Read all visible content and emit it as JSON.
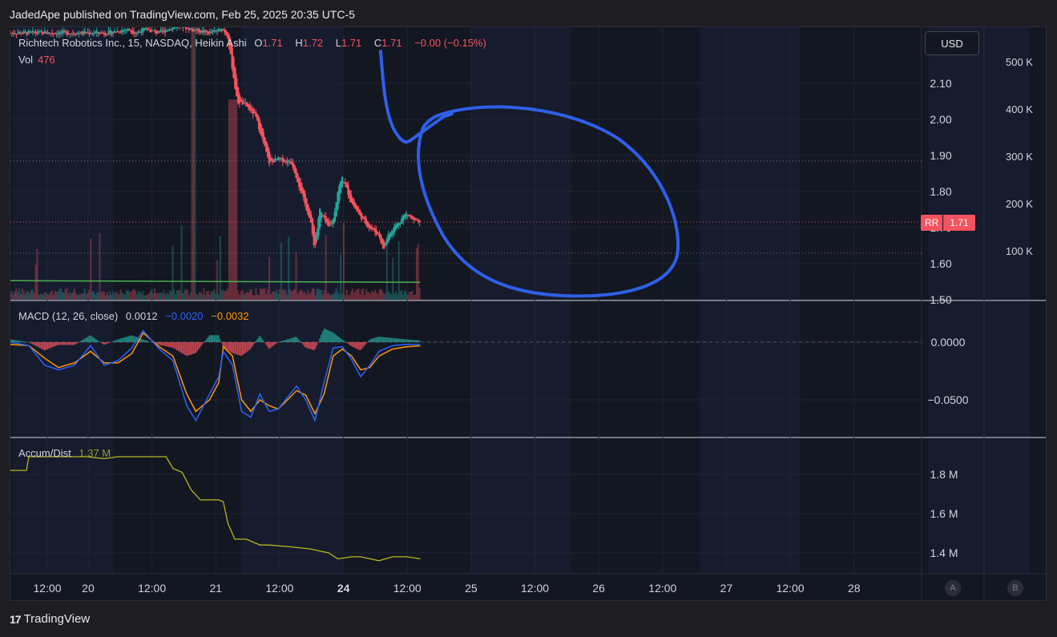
{
  "header": {
    "published_line": "JadedApe published on TradingView.com, Feb 25, 2025 20:35 UTC-5"
  },
  "main_legend": {
    "title": "Richtech Robotics Inc., 15, NASDAQ, Heikin Ashi",
    "o_label": "O",
    "o_value": "1.71",
    "h_label": "H",
    "h_value": "1.72",
    "l_label": "L",
    "l_value": "1.71",
    "c_label": "C",
    "c_value": "1.71",
    "change": "−0.00 (−0.15%)",
    "vol_label": "Vol",
    "vol_value": "476"
  },
  "currency_button": "USD",
  "last_price_tag": {
    "symbol": "RR",
    "price": "1.71"
  },
  "macd_legend": {
    "title": "MACD (12, 26, close)",
    "hist": "0.0012",
    "macd": "−0.0020",
    "signal": "−0.0032"
  },
  "ad_legend": {
    "title": "Accum/Dist",
    "value": "1.37 M"
  },
  "scale_buttons": {
    "a": "A",
    "b": "B"
  },
  "footer": {
    "brand": "TradingView",
    "logo_glyph": "17"
  },
  "colors": {
    "up": "#26a69a",
    "down": "#f7525f",
    "macd": "#2962ff",
    "signal": "#ff9800",
    "ad": "#b5b520",
    "annotation": "#2f5fe8",
    "support": "#4caf50"
  },
  "chart_data": [
    {
      "type": "candlestick",
      "name": "price",
      "y_ticks": [
        "2.10",
        "2.00",
        "1.90",
        "1.80",
        "1.70",
        "1.60",
        "1.50"
      ],
      "y_tick_values": [
        2.1,
        2.0,
        1.9,
        1.8,
        1.7,
        1.6,
        1.5
      ],
      "volume_ticks": [
        "500 K",
        "400 K",
        "300 K",
        "200 K",
        "100 K"
      ],
      "volume_tick_values": [
        500000,
        400000,
        300000,
        200000,
        100000
      ],
      "x_ticks": [
        "12:00",
        "20",
        "12:00",
        "21",
        "12:00",
        "24",
        "12:00",
        "25",
        "12:00",
        "26",
        "12:00",
        "27",
        "12:00",
        "28"
      ],
      "x_tick_bold": [
        false,
        false,
        false,
        false,
        false,
        true,
        false,
        false,
        false,
        false,
        false,
        false,
        false,
        false
      ],
      "support_level": 1.555,
      "close_path": [
        [
          0,
          2.24
        ],
        [
          0.08,
          2.25
        ],
        [
          0.12,
          2.24
        ],
        [
          0.16,
          2.25
        ],
        [
          0.22,
          2.24
        ],
        [
          0.3,
          2.26
        ],
        [
          0.36,
          2.25
        ],
        [
          0.44,
          2.24
        ],
        [
          0.5,
          2.25
        ],
        [
          0.52,
          2.23
        ],
        [
          0.56,
          2.05
        ],
        [
          0.6,
          2.04
        ],
        [
          0.64,
          2.01
        ],
        [
          0.66,
          1.97
        ],
        [
          0.7,
          1.88
        ],
        [
          0.74,
          1.89
        ],
        [
          0.8,
          1.88
        ],
        [
          0.84,
          1.8
        ],
        [
          0.88,
          1.72
        ],
        [
          0.9,
          1.64
        ],
        [
          0.92,
          1.75
        ],
        [
          0.96,
          1.7
        ],
        [
          0.98,
          1.72
        ],
        [
          1.0,
          1.8
        ],
        [
          1.02,
          1.84
        ],
        [
          1.06,
          1.77
        ],
        [
          1.1,
          1.73
        ],
        [
          1.14,
          1.7
        ],
        [
          1.18,
          1.68
        ],
        [
          1.2,
          1.64
        ],
        [
          1.22,
          1.68
        ],
        [
          1.26,
          1.71
        ],
        [
          1.3,
          1.74
        ],
        [
          1.33,
          1.72
        ],
        [
          1.36,
          1.71
        ]
      ],
      "x_domain": [
        -0.43,
        3.55
      ]
    },
    {
      "type": "line",
      "name": "MACD",
      "y_ticks": [
        "0.0000",
        "−0.0500"
      ],
      "y_tick_values": [
        0,
        -0.05
      ],
      "series": [
        {
          "name": "MACD",
          "points": [
            [
              -0.43,
              0.0
            ],
            [
              -0.35,
              -0.003
            ],
            [
              -0.28,
              -0.02
            ],
            [
              -0.22,
              -0.024
            ],
            [
              -0.15,
              -0.02
            ],
            [
              -0.08,
              -0.003
            ],
            [
              -0.02,
              -0.02
            ],
            [
              0.04,
              -0.016
            ],
            [
              0.1,
              -0.005
            ],
            [
              0.15,
              0.01
            ],
            [
              0.22,
              -0.006
            ],
            [
              0.28,
              -0.016
            ],
            [
              0.34,
              -0.055
            ],
            [
              0.38,
              -0.068
            ],
            [
              0.44,
              -0.045
            ],
            [
              0.48,
              -0.03
            ],
            [
              0.5,
              -0.008
            ],
            [
              0.54,
              -0.02
            ],
            [
              0.58,
              -0.06
            ],
            [
              0.62,
              -0.065
            ],
            [
              0.66,
              -0.045
            ],
            [
              0.7,
              -0.06
            ],
            [
              0.74,
              -0.058
            ],
            [
              0.78,
              -0.048
            ],
            [
              0.82,
              -0.038
            ],
            [
              0.86,
              -0.05
            ],
            [
              0.9,
              -0.068
            ],
            [
              0.94,
              -0.035
            ],
            [
              0.98,
              -0.005
            ],
            [
              1.02,
              -0.004
            ],
            [
              1.06,
              -0.015
            ],
            [
              1.1,
              -0.03
            ],
            [
              1.14,
              -0.02
            ],
            [
              1.18,
              -0.008
            ],
            [
              1.24,
              -0.003
            ],
            [
              1.3,
              -0.002
            ],
            [
              1.36,
              -0.002
            ]
          ]
        },
        {
          "name": "Signal",
          "points": [
            [
              -0.43,
              -0.002
            ],
            [
              -0.35,
              -0.003
            ],
            [
              -0.28,
              -0.014
            ],
            [
              -0.22,
              -0.022
            ],
            [
              -0.15,
              -0.018
            ],
            [
              -0.08,
              -0.008
            ],
            [
              -0.02,
              -0.018
            ],
            [
              0.04,
              -0.018
            ],
            [
              0.1,
              -0.01
            ],
            [
              0.15,
              0.008
            ],
            [
              0.22,
              -0.004
            ],
            [
              0.28,
              -0.012
            ],
            [
              0.34,
              -0.045
            ],
            [
              0.38,
              -0.06
            ],
            [
              0.44,
              -0.05
            ],
            [
              0.48,
              -0.035
            ],
            [
              0.5,
              -0.004
            ],
            [
              0.54,
              -0.012
            ],
            [
              0.58,
              -0.05
            ],
            [
              0.62,
              -0.06
            ],
            [
              0.66,
              -0.05
            ],
            [
              0.7,
              -0.055
            ],
            [
              0.74,
              -0.058
            ],
            [
              0.78,
              -0.05
            ],
            [
              0.82,
              -0.042
            ],
            [
              0.86,
              -0.046
            ],
            [
              0.9,
              -0.062
            ],
            [
              0.94,
              -0.045
            ],
            [
              0.98,
              -0.012
            ],
            [
              1.02,
              -0.006
            ],
            [
              1.06,
              -0.012
            ],
            [
              1.1,
              -0.024
            ],
            [
              1.14,
              -0.022
            ],
            [
              1.18,
              -0.012
            ],
            [
              1.24,
              -0.006
            ],
            [
              1.3,
              -0.004
            ],
            [
              1.36,
              -0.0032
            ]
          ]
        }
      ]
    },
    {
      "type": "line",
      "name": "Accum/Dist",
      "y_ticks": [
        "1.8 M",
        "1.6 M",
        "1.4 M"
      ],
      "y_tick_values": [
        1.8,
        1.6,
        1.4
      ],
      "points": [
        [
          -0.43,
          1.82
        ],
        [
          -0.36,
          1.82
        ],
        [
          -0.35,
          1.89
        ],
        [
          -0.1,
          1.89
        ],
        [
          -0.02,
          1.88
        ],
        [
          0.04,
          1.89
        ],
        [
          0.18,
          1.89
        ],
        [
          0.25,
          1.89
        ],
        [
          0.28,
          1.83
        ],
        [
          0.32,
          1.81
        ],
        [
          0.36,
          1.72
        ],
        [
          0.4,
          1.67
        ],
        [
          0.48,
          1.67
        ],
        [
          0.5,
          1.66
        ],
        [
          0.52,
          1.55
        ],
        [
          0.55,
          1.47
        ],
        [
          0.6,
          1.47
        ],
        [
          0.66,
          1.44
        ],
        [
          0.7,
          1.44
        ],
        [
          0.8,
          1.43
        ],
        [
          0.88,
          1.42
        ],
        [
          0.92,
          1.41
        ],
        [
          0.96,
          1.4
        ],
        [
          1.0,
          1.37
        ],
        [
          1.06,
          1.38
        ],
        [
          1.1,
          1.38
        ],
        [
          1.18,
          1.36
        ],
        [
          1.24,
          1.38
        ],
        [
          1.3,
          1.38
        ],
        [
          1.36,
          1.37
        ]
      ]
    }
  ]
}
